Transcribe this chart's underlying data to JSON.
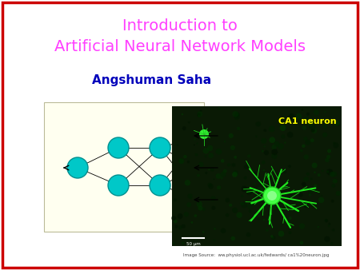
{
  "title_line1": "Introduction to",
  "title_line2": "Artificial Neural Network Models",
  "title_color": "#FF40FF",
  "author": "Angshuman Saha",
  "author_color": "#0000BB",
  "bg_color": "#FFFFFF",
  "border_color": "#CC0000",
  "border_linewidth": 2.5,
  "neural_bg_color": "#FFFFF0",
  "node_color": "#00C8C8",
  "node_edgecolor": "#009090",
  "ca1_label": "CA1 neuron",
  "ca1_label_color": "#FFFF00",
  "image_source_text": "Image Source:  ww.physiol.ucl.ac.uk/fedwards/ ca1%20neuron.jpg",
  "image_source_color": "#444444",
  "figsize": [
    4.5,
    3.38
  ],
  "dpi": 100
}
